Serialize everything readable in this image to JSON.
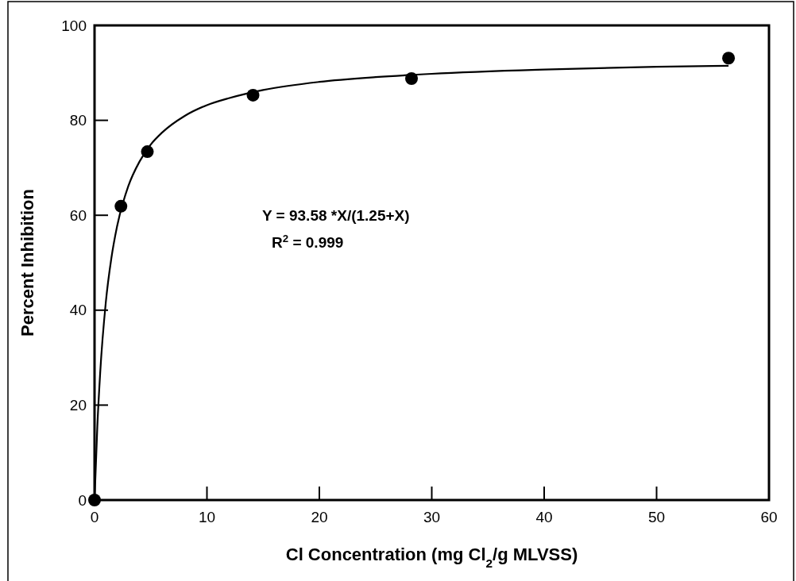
{
  "chart_data": {
    "type": "scatter",
    "xlabel": "Cl Concentration (mg Cl$_{2}$/g MLVSS)",
    "ylabel": "Percent Inhibition",
    "xlim": [
      0,
      60
    ],
    "ylim": [
      0,
      100
    ],
    "xticks": [
      0,
      10,
      20,
      30,
      40,
      50,
      60
    ],
    "yticks": [
      0,
      20,
      40,
      60,
      80,
      100
    ],
    "grid": false,
    "annotations": [
      "Y = 93.58 *X/(1.25+X)",
      "R$^{2}$ = 0.999"
    ],
    "series": [
      {
        "color": "#000000",
        "marker": "circle",
        "x": [
          0,
          2.35,
          4.7,
          14.1,
          28.2,
          56.4
        ],
        "values": [
          0,
          61.9,
          73.4,
          85.3,
          88.8,
          93.1
        ]
      },
      {
        "type": "line",
        "color": "#000000",
        "x": [
          0,
          0.25,
          0.5,
          1,
          1.5,
          2,
          3,
          4,
          5,
          6,
          8,
          10,
          12,
          15,
          20,
          25,
          30,
          40,
          50,
          56.4
        ],
        "values": [
          0,
          15.6,
          26.7,
          41.6,
          51.0,
          57.6,
          66.1,
          71.3,
          74.9,
          77.4,
          80.9,
          83.2,
          84.7,
          86.4,
          88.1,
          89.1,
          89.8,
          90.7,
          91.3,
          91.5
        ]
      }
    ]
  }
}
